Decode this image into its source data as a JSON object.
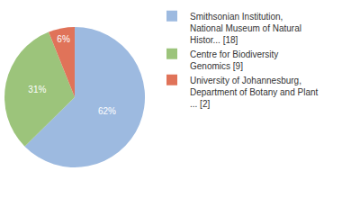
{
  "chart_data": {
    "type": "pie",
    "categories": [
      "Smithsonian Institution, National Museum of Natural Histor... [18]",
      "Centre for Biodiversity Genomics [9]",
      "University of Johannesburg, Department of Botany and Plant ... [2]"
    ],
    "values": [
      62,
      31,
      6
    ],
    "value_labels": [
      "62%",
      "31%",
      "6%"
    ],
    "data_labels": true,
    "colors": [
      "#9dbae0",
      "#9cc47b",
      "#e07359"
    ],
    "legend": "right"
  }
}
